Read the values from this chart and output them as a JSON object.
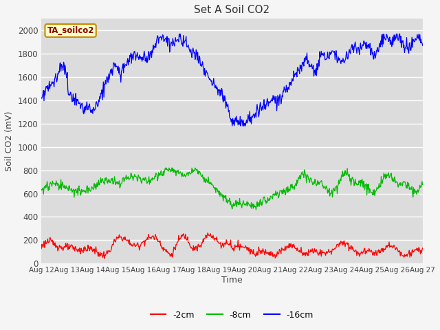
{
  "title": "Set A Soil CO2",
  "ylabel": "Soil CO2 (mV)",
  "xlabel": "Time",
  "legend_label": "TA_soilco2",
  "series_labels": [
    "-2cm",
    "-8cm",
    "-16cm"
  ],
  "series_colors": [
    "#ff0000",
    "#00bb00",
    "#0000ff"
  ],
  "ylim": [
    0,
    2100
  ],
  "yticks": [
    0,
    200,
    400,
    600,
    800,
    1000,
    1200,
    1400,
    1600,
    1800,
    2000
  ],
  "bg_color": "#dcdcdc",
  "fig_color": "#f5f5f5",
  "grid_color": "#ffffff",
  "n_points": 720,
  "xtick_labels": [
    "Aug 12",
    "Aug 13",
    "Aug 14",
    "Aug 15",
    "Aug 16",
    "Aug 17",
    "Aug 18",
    "Aug 19",
    "Aug 20",
    "Aug 21",
    "Aug 22",
    "Aug 23",
    "Aug 24",
    "Aug 25",
    "Aug 26",
    "Aug 27"
  ]
}
